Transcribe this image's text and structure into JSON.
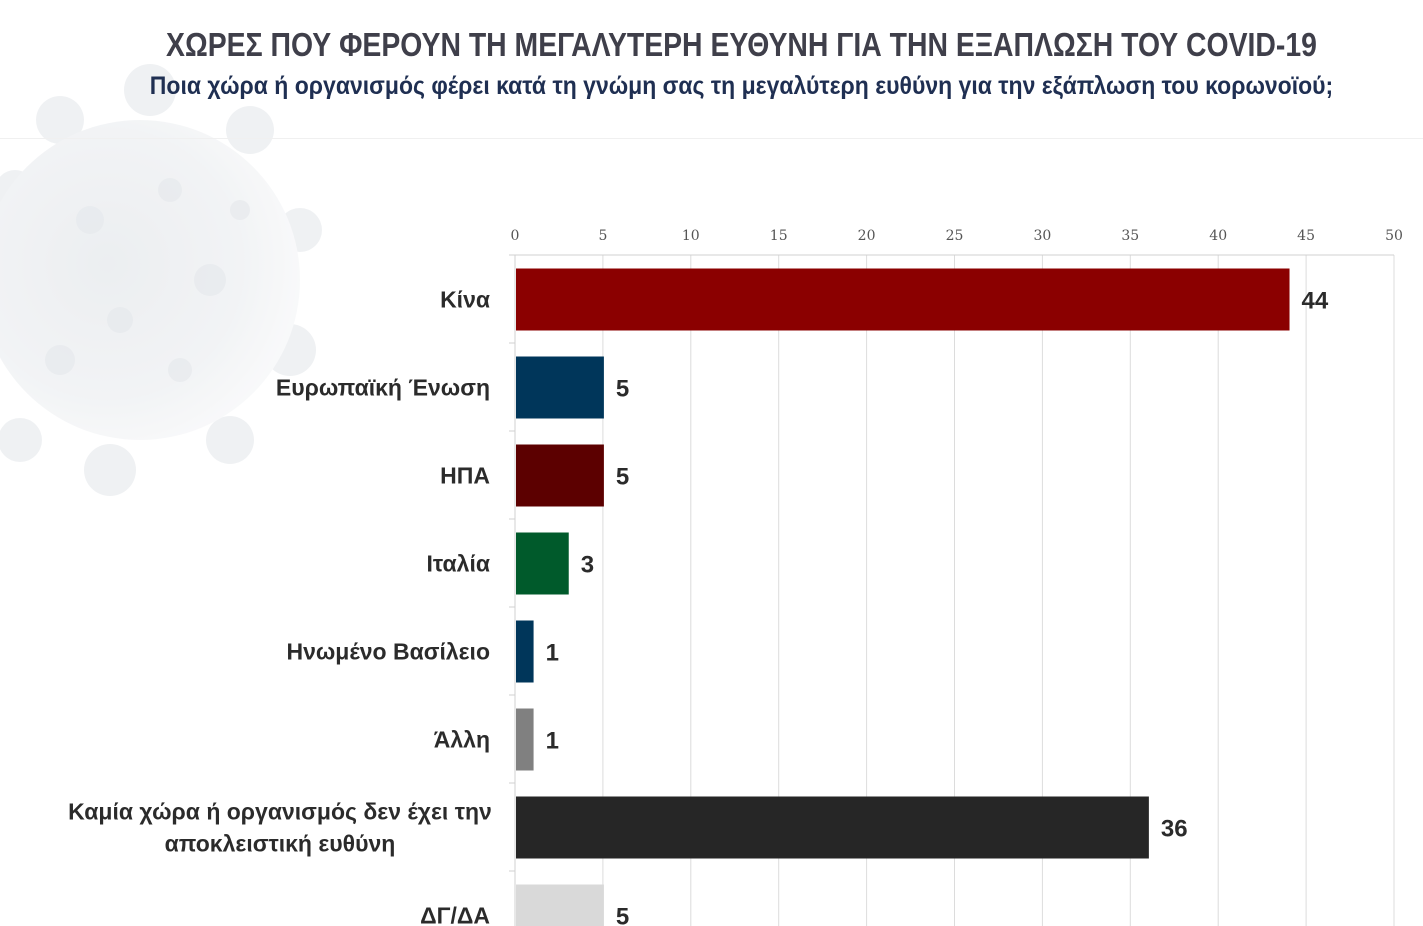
{
  "header": {
    "title": "ΧΩΡΕΣ ΠΟΥ ΦΕΡΟΥΝ ΤΗ ΜΕΓΑΛΥΤΕΡΗ ΕΥΘΥΝΗ ΓΙΑ ΤΗΝ ΕΞΑΠΛΩΣΗ ΤΟΥ COVID-19",
    "subtitle": "Ποια χώρα ή οργανισμός φέρει κατά τη γνώμη σας τη μεγαλύτερη ευθύνη για την εξάπλωση του κορωνοϊού;"
  },
  "chart_data": {
    "type": "bar",
    "orientation": "horizontal",
    "categories": [
      [
        "Κίνα"
      ],
      [
        "Ευρωπαϊκή Ένωση"
      ],
      [
        "ΗΠΑ"
      ],
      [
        "Ιταλία"
      ],
      [
        "Ηνωμένο Βασίλειο"
      ],
      [
        "Άλλη"
      ],
      [
        "Καμία χώρα ή οργανισμός δεν έχει την",
        "αποκλειστική ευθύνη"
      ],
      [
        "ΔΓ/ΔΑ"
      ]
    ],
    "values": [
      44,
      5,
      5,
      3,
      1,
      1,
      36,
      5
    ],
    "colors": [
      "#8b0000",
      "#00365a",
      "#5c0000",
      "#005a2b",
      "#00365a",
      "#808080",
      "#262626",
      "#d9d9d9"
    ],
    "xlim": [
      0,
      50
    ],
    "xticks": [
      0,
      5,
      10,
      15,
      20,
      25,
      30,
      35,
      40,
      45,
      50
    ],
    "axis_position": "top",
    "grid": true,
    "legend": "none"
  }
}
